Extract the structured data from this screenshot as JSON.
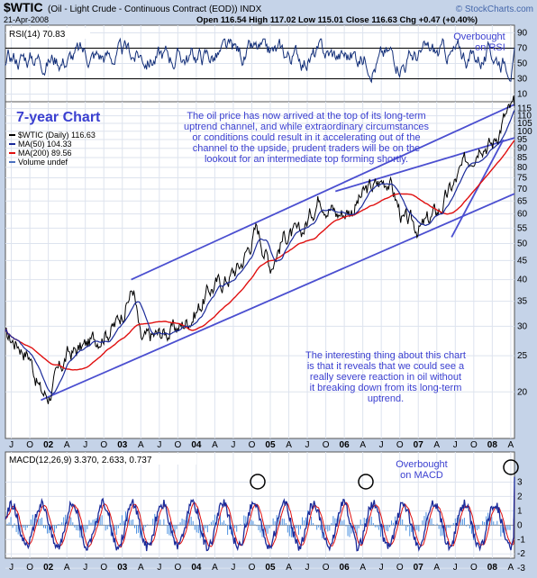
{
  "header": {
    "symbol": "$WTIC",
    "description": "(Oil - Light Crude - Continuous Contract (EOD)) INDX",
    "date": "21-Apr-2008",
    "brand": "© StockCharts.com",
    "ohlc": "Open 116.54  High 117.02  Low 115.01  Close 116.63  Chg +0.47 (+0.40%)"
  },
  "colors": {
    "background": "#c5d3e8",
    "panel": "#ffffff",
    "price": "#000000",
    "ma50": "#1a2a9a",
    "ma200": "#e01010",
    "channel": "#4b4fd0",
    "annotation": "#3a3fd0",
    "rsi": "#14307a",
    "macd": "#1a2a9a",
    "signal": "#e01010",
    "histogram": "#4a90e0"
  },
  "annotations": {
    "chart_label": "7-year Chart",
    "rsi_note_1": "Overbought",
    "rsi_note_2": "on RSI",
    "macd_note_1": "Overbought",
    "macd_note_2": "on MACD",
    "top_note": [
      "The oil price has now arrived at the top of its long-term",
      "uptrend channel, and while extraordinary circumstances",
      "or conditions could result in it accelerating out of the",
      "channel to the upside, prudent traders will be on the",
      "lookout for an intermediate top forming shortly."
    ],
    "bottom_note": [
      "The interesting thing about this chart",
      "is that it reveals that we could see a",
      "really severe reaction in oil without",
      "it breaking down from its long-term",
      "uptrend."
    ]
  },
  "chart_data": [
    {
      "type": "line",
      "panel": "RSI",
      "title": "RSI(14) 70.83",
      "ylim": [
        0,
        100
      ],
      "y_ticks": [
        10,
        30,
        50,
        70,
        90
      ],
      "reference_lines": [
        30,
        70
      ],
      "series": [
        {
          "name": "RSI(14)",
          "last": 70.83
        }
      ]
    },
    {
      "type": "line",
      "panel": "Price",
      "scale": "log",
      "ylim": [
        15,
        120
      ],
      "y_ticks": [
        20,
        25,
        30,
        35,
        40,
        45,
        50,
        55,
        60,
        65,
        70,
        75,
        80,
        85,
        90,
        95,
        100,
        105,
        110,
        115
      ],
      "x_tick_labels": [
        "J",
        "O",
        "02",
        "A",
        "J",
        "O",
        "03",
        "A",
        "J",
        "O",
        "04",
        "A",
        "J",
        "O",
        "05",
        "A",
        "J",
        "O",
        "06",
        "A",
        "J",
        "O",
        "07",
        "A",
        "J",
        "O",
        "08",
        "A"
      ],
      "legend": [
        {
          "label": "$WTIC (Daily) 116.63",
          "color": "#000000"
        },
        {
          "label": "MA(50) 104.33",
          "color": "#1a2a9a"
        },
        {
          "label": "MA(200) 89.56",
          "color": "#e01010"
        },
        {
          "label": "Volume undef",
          "color": "#4a70c0"
        }
      ],
      "x": [
        2001.42,
        2001.6,
        2001.75,
        2001.9,
        2002.0,
        2002.25,
        2002.5,
        2002.75,
        2002.9,
        2003.0,
        2003.15,
        2003.25,
        2003.4,
        2003.6,
        2003.8,
        2004.0,
        2004.2,
        2004.4,
        2004.6,
        2004.82,
        2005.0,
        2005.2,
        2005.4,
        2005.67,
        2005.9,
        2006.1,
        2006.3,
        2006.6,
        2006.8,
        2007.05,
        2007.3,
        2007.55,
        2007.85,
        2008.0,
        2008.15,
        2008.3
      ],
      "series": [
        {
          "name": "$WTIC (Daily)",
          "values": [
            28,
            27,
            25,
            20,
            19.5,
            25,
            26.5,
            29,
            30,
            33,
            38,
            27,
            28,
            29,
            30,
            33,
            38,
            40,
            44,
            55,
            44,
            53,
            52,
            68,
            60,
            62,
            69,
            75,
            57,
            55,
            62,
            76,
            96,
            92,
            108,
            116.63
          ]
        },
        {
          "name": "MA(50)",
          "last": 104.33
        },
        {
          "name": "MA(200)",
          "last": 89.56
        }
      ]
    },
    {
      "type": "line",
      "panel": "MACD",
      "title": "MACD(12,26,9) 3.370, 2.633, 0.737",
      "ylim": [
        -3,
        3
      ],
      "y_ticks": [
        -3,
        -2,
        -1,
        0,
        1,
        2,
        3
      ],
      "series": [
        {
          "name": "MACD(12,26,9)",
          "last": 3.37
        },
        {
          "name": "Signal",
          "last": 2.633
        },
        {
          "name": "Histogram",
          "last": 0.737
        }
      ]
    }
  ]
}
